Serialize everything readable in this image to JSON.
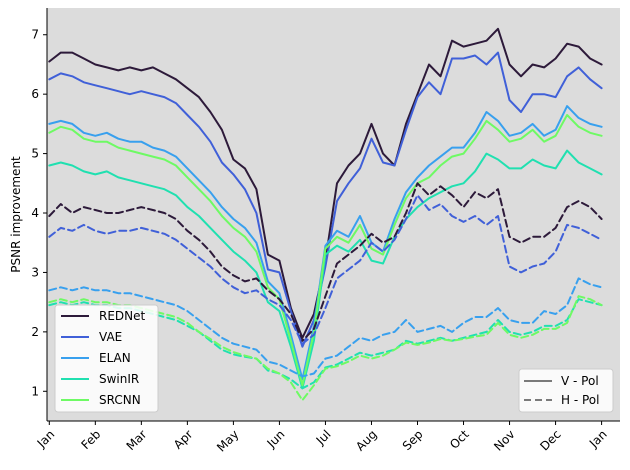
{
  "chart_data": {
    "type": "line",
    "title": "",
    "xlabel": "",
    "ylabel": "PSNR improvement",
    "x_ticks": [
      "Jan",
      "Feb",
      "Mar",
      "Apr",
      "May",
      "Jun",
      "Jul",
      "Aug",
      "Sep",
      "Oct",
      "Nov",
      "Dec",
      "Jan"
    ],
    "y_ticks": [
      1,
      2,
      3,
      4,
      5,
      6,
      7
    ],
    "xlim": [
      -0.05,
      12.4
    ],
    "ylim": [
      0.5,
      7.45
    ],
    "grid": false,
    "background_color": "#dcdcdc",
    "x_unit": "month",
    "x": [
      0,
      0.25,
      0.5,
      0.75,
      1,
      1.25,
      1.5,
      1.75,
      2,
      2.25,
      2.5,
      2.75,
      3,
      3.25,
      3.5,
      3.75,
      4,
      4.25,
      4.5,
      4.75,
      5,
      5.25,
      5.5,
      5.75,
      6,
      6.25,
      6.5,
      6.75,
      7,
      7.25,
      7.5,
      7.75,
      8,
      8.25,
      8.5,
      8.75,
      9,
      9.25,
      9.5,
      9.75,
      10,
      10.25,
      10.5,
      10.75,
      11,
      11.25,
      11.5,
      11.75,
      12
    ],
    "series": [
      {
        "name": "REDNet",
        "pol": "V - Pol",
        "color": "#2d1a3a",
        "values": [
          6.55,
          6.7,
          6.7,
          6.6,
          6.5,
          6.45,
          6.4,
          6.45,
          6.4,
          6.45,
          6.35,
          6.25,
          6.1,
          5.95,
          5.7,
          5.4,
          4.9,
          4.75,
          4.4,
          3.3,
          3.2,
          2.4,
          1.9,
          2.3,
          3.2,
          4.5,
          4.8,
          5.0,
          5.5,
          5.0,
          4.8,
          5.5,
          6.0,
          6.5,
          6.3,
          6.9,
          6.8,
          6.85,
          6.9,
          7.1,
          6.5,
          6.3,
          6.5,
          6.45,
          6.6,
          6.85,
          6.8,
          6.6,
          6.5
        ]
      },
      {
        "name": "VAE",
        "pol": "V - Pol",
        "color": "#4060d8",
        "values": [
          6.25,
          6.35,
          6.3,
          6.2,
          6.15,
          6.1,
          6.05,
          6.0,
          6.05,
          6.0,
          5.95,
          5.85,
          5.65,
          5.45,
          5.2,
          4.85,
          4.65,
          4.4,
          4.0,
          3.05,
          3.0,
          2.35,
          1.75,
          2.2,
          3.1,
          4.2,
          4.5,
          4.75,
          5.25,
          4.85,
          4.8,
          5.4,
          5.95,
          6.2,
          6.0,
          6.6,
          6.6,
          6.65,
          6.5,
          6.7,
          5.9,
          5.7,
          6.0,
          6.0,
          5.95,
          6.3,
          6.45,
          6.25,
          6.1
        ]
      },
      {
        "name": "ELAN",
        "pol": "V - Pol",
        "color": "#38a0ee",
        "values": [
          5.5,
          5.55,
          5.5,
          5.35,
          5.3,
          5.35,
          5.25,
          5.2,
          5.2,
          5.1,
          5.05,
          4.95,
          4.75,
          4.55,
          4.35,
          4.1,
          3.9,
          3.75,
          3.5,
          2.85,
          2.65,
          1.95,
          1.2,
          2.1,
          3.45,
          3.7,
          3.6,
          3.95,
          3.5,
          3.35,
          3.9,
          4.35,
          4.6,
          4.8,
          4.95,
          5.1,
          5.1,
          5.35,
          5.7,
          5.55,
          5.3,
          5.35,
          5.5,
          5.3,
          5.4,
          5.8,
          5.6,
          5.5,
          5.45
        ]
      },
      {
        "name": "SwinIR",
        "pol": "V - Pol",
        "color": "#20e0b0",
        "values": [
          4.8,
          4.85,
          4.8,
          4.7,
          4.65,
          4.7,
          4.6,
          4.55,
          4.5,
          4.45,
          4.4,
          4.3,
          4.1,
          3.95,
          3.75,
          3.55,
          3.35,
          3.2,
          3.0,
          2.5,
          2.35,
          1.75,
          1.05,
          1.85,
          3.3,
          3.45,
          3.35,
          3.55,
          3.2,
          3.15,
          3.6,
          3.9,
          4.1,
          4.25,
          4.35,
          4.45,
          4.5,
          4.7,
          5.0,
          4.9,
          4.75,
          4.75,
          4.9,
          4.8,
          4.75,
          5.05,
          4.85,
          4.75,
          4.65
        ]
      },
      {
        "name": "SRCNN",
        "pol": "V - Pol",
        "color": "#6efa64",
        "values": [
          5.35,
          5.45,
          5.4,
          5.25,
          5.2,
          5.2,
          5.1,
          5.05,
          5.0,
          4.95,
          4.9,
          4.8,
          4.6,
          4.4,
          4.2,
          3.95,
          3.75,
          3.6,
          3.35,
          2.75,
          2.55,
          1.85,
          1.1,
          2.0,
          3.4,
          3.6,
          3.5,
          3.8,
          3.4,
          3.3,
          3.8,
          4.25,
          4.5,
          4.6,
          4.8,
          4.95,
          5.0,
          5.25,
          5.55,
          5.4,
          5.2,
          5.25,
          5.4,
          5.2,
          5.3,
          5.65,
          5.45,
          5.35,
          5.3
        ]
      },
      {
        "name": "REDNet",
        "pol": "H - Pol",
        "color": "#2d1a3a",
        "values": [
          3.95,
          4.15,
          4.0,
          4.1,
          4.05,
          4.0,
          4.0,
          4.05,
          4.1,
          4.05,
          4.0,
          3.9,
          3.7,
          3.55,
          3.35,
          3.1,
          2.95,
          2.85,
          2.9,
          2.7,
          2.55,
          2.3,
          1.85,
          2.05,
          2.6,
          3.15,
          3.3,
          3.45,
          3.65,
          3.5,
          3.6,
          4.0,
          4.5,
          4.3,
          4.45,
          4.3,
          4.1,
          4.35,
          4.25,
          4.4,
          3.6,
          3.5,
          3.6,
          3.6,
          3.75,
          4.1,
          4.2,
          4.1,
          3.9
        ]
      },
      {
        "name": "VAE",
        "pol": "H - Pol",
        "color": "#4060d8",
        "values": [
          3.6,
          3.75,
          3.7,
          3.8,
          3.7,
          3.65,
          3.7,
          3.7,
          3.75,
          3.7,
          3.65,
          3.55,
          3.4,
          3.25,
          3.1,
          2.9,
          2.75,
          2.65,
          2.7,
          2.55,
          2.45,
          2.2,
          1.8,
          1.95,
          2.4,
          2.9,
          3.05,
          3.2,
          3.5,
          3.35,
          3.55,
          3.9,
          4.3,
          4.05,
          4.15,
          3.95,
          3.85,
          3.95,
          3.8,
          3.95,
          3.1,
          3.0,
          3.1,
          3.15,
          3.35,
          3.8,
          3.75,
          3.65,
          3.55
        ]
      },
      {
        "name": "ELAN",
        "pol": "H - Pol",
        "color": "#38a0ee",
        "values": [
          2.7,
          2.75,
          2.7,
          2.75,
          2.7,
          2.7,
          2.65,
          2.65,
          2.6,
          2.55,
          2.5,
          2.45,
          2.35,
          2.2,
          2.05,
          1.9,
          1.8,
          1.75,
          1.7,
          1.5,
          1.45,
          1.35,
          1.25,
          1.3,
          1.55,
          1.6,
          1.75,
          1.9,
          1.85,
          1.95,
          2.0,
          2.2,
          2.0,
          2.05,
          2.1,
          2.0,
          2.15,
          2.25,
          2.25,
          2.4,
          2.2,
          2.15,
          2.15,
          2.35,
          2.3,
          2.45,
          2.9,
          2.8,
          2.75
        ]
      },
      {
        "name": "SwinIR",
        "pol": "H - Pol",
        "color": "#20e0b0",
        "values": [
          2.45,
          2.5,
          2.45,
          2.5,
          2.45,
          2.45,
          2.4,
          2.4,
          2.35,
          2.3,
          2.25,
          2.2,
          2.1,
          2.0,
          1.85,
          1.7,
          1.62,
          1.58,
          1.55,
          1.35,
          1.3,
          1.2,
          1.05,
          1.15,
          1.4,
          1.45,
          1.55,
          1.65,
          1.6,
          1.65,
          1.7,
          1.85,
          1.8,
          1.85,
          1.9,
          1.85,
          1.9,
          1.95,
          2.0,
          2.2,
          2.0,
          1.95,
          2.0,
          2.1,
          2.1,
          2.2,
          2.55,
          2.5,
          2.45
        ]
      },
      {
        "name": "SRCNN",
        "pol": "H - Pol",
        "color": "#6efa64",
        "values": [
          2.5,
          2.55,
          2.5,
          2.55,
          2.5,
          2.5,
          2.45,
          2.45,
          2.4,
          2.35,
          2.3,
          2.25,
          2.15,
          2.0,
          1.88,
          1.75,
          1.66,
          1.6,
          1.55,
          1.38,
          1.3,
          1.15,
          0.85,
          1.1,
          1.38,
          1.42,
          1.5,
          1.6,
          1.55,
          1.6,
          1.7,
          1.82,
          1.78,
          1.82,
          1.88,
          1.85,
          1.88,
          1.92,
          1.95,
          2.15,
          1.95,
          1.9,
          1.95,
          2.05,
          2.05,
          2.15,
          2.6,
          2.55,
          2.45
        ]
      }
    ],
    "legend_models": {
      "placement": "lower-left",
      "entries": [
        {
          "label": "REDNet",
          "color": "#2d1a3a"
        },
        {
          "label": "VAE",
          "color": "#4060d8"
        },
        {
          "label": "ELAN",
          "color": "#38a0ee"
        },
        {
          "label": "SwinIR",
          "color": "#20e0b0"
        },
        {
          "label": "SRCNN",
          "color": "#6efa64"
        }
      ]
    },
    "legend_pol": {
      "placement": "lower-right",
      "entries": [
        {
          "label": "V - Pol",
          "style": "solid",
          "color": "#7a7a7a"
        },
        {
          "label": "H - Pol",
          "style": "dashed",
          "color": "#7a7a7a"
        }
      ]
    }
  }
}
